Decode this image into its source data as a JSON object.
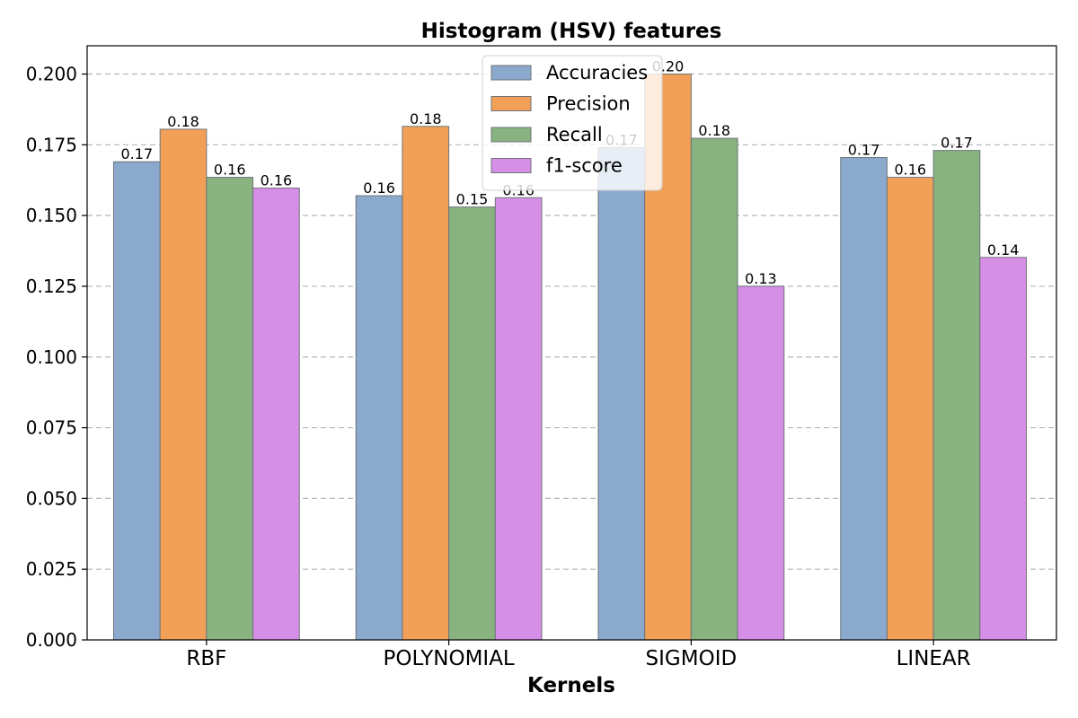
{
  "chart_data": {
    "type": "bar",
    "title": "Histogram (HSV) features",
    "xlabel": "Kernels",
    "ylabel": "",
    "categories": [
      "RBF",
      "POLYNOMIAL",
      "SIGMOID",
      "LINEAR"
    ],
    "series": [
      {
        "name": "Accuracies",
        "color": "#8aa9cd",
        "values": [
          0.169,
          0.157,
          0.174,
          0.1705
        ],
        "labels": [
          "0.17",
          "0.16",
          "0.17",
          "0.17"
        ]
      },
      {
        "name": "Precision",
        "color": "#f2a058",
        "values": [
          0.1805,
          0.1815,
          0.2,
          0.1635
        ],
        "labels": [
          "0.18",
          "0.18",
          "0.20",
          "0.16"
        ]
      },
      {
        "name": "Recall",
        "color": "#88b27f",
        "values": [
          0.1635,
          0.153,
          0.1773,
          0.173
        ],
        "labels": [
          "0.16",
          "0.15",
          "0.18",
          "0.17"
        ]
      },
      {
        "name": "f1-score",
        "color": "#d78ee6",
        "values": [
          0.1597,
          0.1563,
          0.125,
          0.1352
        ],
        "labels": [
          "0.16",
          "0.16",
          "0.13",
          "0.14"
        ]
      }
    ],
    "ylim": [
      0,
      0.21
    ],
    "yticks": [
      "0.000",
      "0.025",
      "0.050",
      "0.075",
      "0.100",
      "0.125",
      "0.150",
      "0.175",
      "0.200"
    ],
    "ytick_values": [
      0,
      0.025,
      0.05,
      0.075,
      0.1,
      0.125,
      0.15,
      0.175,
      0.2
    ],
    "grid": true,
    "legend_position": "top-center"
  }
}
